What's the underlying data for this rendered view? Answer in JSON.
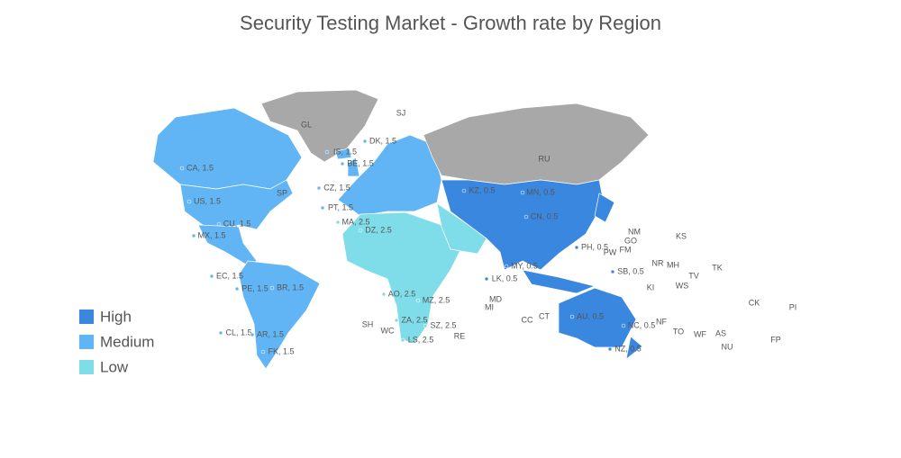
{
  "chart_data": {
    "type": "choropleth",
    "title": "Security Testing Market - Growth rate by Region",
    "legend": [
      {
        "label": "High",
        "color": "#3a87e0"
      },
      {
        "label": "Medium",
        "color": "#62b5f5"
      },
      {
        "label": "Low",
        "color": "#7fdde9"
      }
    ],
    "no_data_color": "#a8a8a8",
    "regions": [
      {
        "label": "CA, 1.5",
        "value": 1.5,
        "color": "#62b5f5"
      },
      {
        "label": "US, 1.5",
        "value": 1.5,
        "color": "#62b5f5"
      },
      {
        "label": "MX, 1.5",
        "value": 1.5,
        "color": "#62b5f5"
      },
      {
        "label": "CU, 1.5",
        "value": 1.5,
        "color": "#62b5f5"
      },
      {
        "label": "EC, 1.5",
        "value": 1.5,
        "color": "#62b5f5"
      },
      {
        "label": "PE, 1.5",
        "value": 1.5,
        "color": "#62b5f5"
      },
      {
        "label": "BR, 1.5",
        "value": 1.5,
        "color": "#62b5f5"
      },
      {
        "label": "CL, 1.5",
        "value": 1.5,
        "color": "#62b5f5"
      },
      {
        "label": "AR, 1.5",
        "value": 1.5,
        "color": "#62b5f5"
      },
      {
        "label": "FK, 1.5",
        "value": 1.5,
        "color": "#62b5f5"
      },
      {
        "label": "IS, 1.5",
        "value": 1.5,
        "color": "#62b5f5"
      },
      {
        "label": "DK, 1.5",
        "value": 1.5,
        "color": "#62b5f5"
      },
      {
        "label": "BE, 1.5",
        "value": 1.5,
        "color": "#62b5f5"
      },
      {
        "label": "CZ, 1.5",
        "value": 1.5,
        "color": "#62b5f5"
      },
      {
        "label": "PT, 1.5",
        "value": 1.5,
        "color": "#62b5f5"
      },
      {
        "label": "MA, 2.5",
        "value": 2.5,
        "color": "#7fdde9"
      },
      {
        "label": "DZ, 2.5",
        "value": 2.5,
        "color": "#7fdde9"
      },
      {
        "label": "AO, 2.5",
        "value": 2.5,
        "color": "#7fdde9"
      },
      {
        "label": "MZ, 2.5",
        "value": 2.5,
        "color": "#7fdde9"
      },
      {
        "label": "ZA, 2.5",
        "value": 2.5,
        "color": "#7fdde9"
      },
      {
        "label": "SZ, 2.5",
        "value": 2.5,
        "color": "#7fdde9"
      },
      {
        "label": "LS, 2.5",
        "value": 2.5,
        "color": "#7fdde9"
      },
      {
        "label": "KZ, 0.5",
        "value": 0.5,
        "color": "#3a87e0"
      },
      {
        "label": "MN, 0.5",
        "value": 0.5,
        "color": "#3a87e0"
      },
      {
        "label": "CN, 0.5",
        "value": 0.5,
        "color": "#3a87e0"
      },
      {
        "label": "LK, 0.5",
        "value": 0.5,
        "color": "#3a87e0"
      },
      {
        "label": "MY, 0.5",
        "value": 0.5,
        "color": "#3a87e0"
      },
      {
        "label": "PH, 0.5",
        "value": 0.5,
        "color": "#3a87e0"
      },
      {
        "label": "SB, 0.5",
        "value": 0.5,
        "color": "#3a87e0"
      },
      {
        "label": "AU, 0.5",
        "value": 0.5,
        "color": "#3a87e0"
      },
      {
        "label": "NC, 0.5",
        "value": 0.5,
        "color": "#3a87e0"
      },
      {
        "label": "NZ, 0.5",
        "value": 0.5,
        "color": "#3a87e0"
      }
    ],
    "other_labels": [
      "GL",
      "SJ",
      "RU",
      "SP",
      "SH",
      "WC",
      "RE",
      "MD",
      "MI",
      "CC",
      "CT",
      "NM",
      "GO",
      "KS",
      "FM",
      "PW",
      "NR",
      "MH",
      "KI",
      "TK",
      "TV",
      "WS",
      "NF",
      "TO",
      "WF",
      "AS",
      "NU",
      "CK",
      "PI",
      "FP"
    ]
  }
}
